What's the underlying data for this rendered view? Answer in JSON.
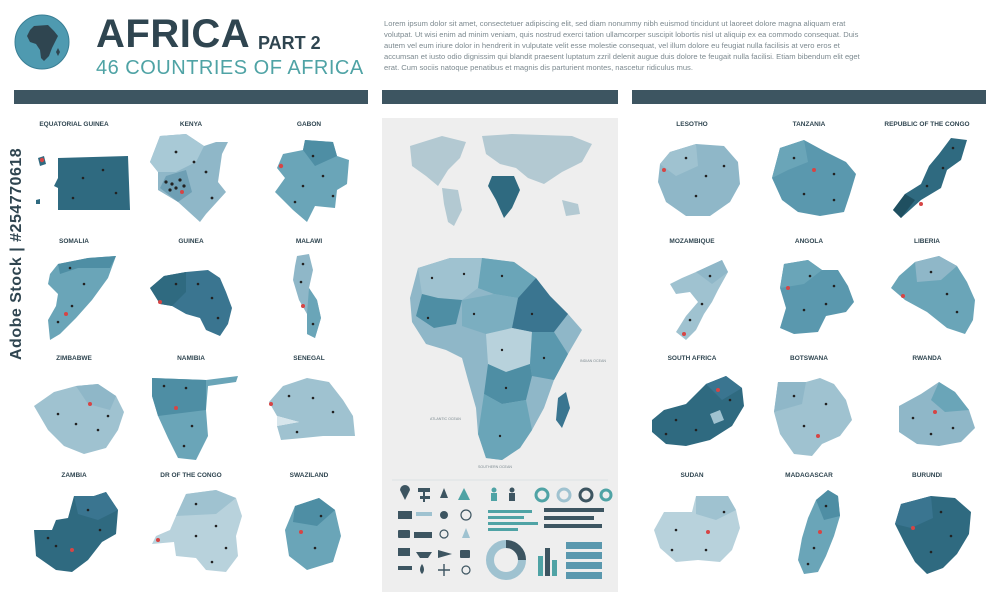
{
  "header": {
    "title": "AFRICA",
    "part": "PART 2",
    "subtitle": "46 COUNTRIES OF AFRICA",
    "lorem": "Lorem ipsum dolor sit amet, consectetuer adipiscing elit, sed diam nonummy nibh euismod tincidunt ut laoreet dolore magna aliquam erat volutpat. Ut wisi enim ad minim veniam, quis nostrud exerci tation ullamcorper suscipit lobortis nisl ut aliquip ex ea commodo consequat. Duis autem vel eum iriure dolor in hendrerit in vulputate velit esse molestie consequat, vel illum dolore eu feugiat nulla facilisis at vero eros et accumsan et iusto odio dignissim qui blandit praesent luptatum zzril delenit augue duis dolore te feugait nulla facilisi. Etiam bibendum elit eget erat. Cum sociis natoque penatibus et magnis dis parturient montes, nascetur ridiculus mus."
  },
  "watermark": "Adobe Stock | #254770618",
  "colors": {
    "dark": "#2f4550",
    "teal": "#4fa3a5",
    "map_dark": "#2f6a80",
    "map_mid": "#5a98ae",
    "map_light": "#9fc2d0",
    "bar": "#3d5561"
  },
  "left_countries": [
    {
      "name": "EQUATORIAL GUINEA"
    },
    {
      "name": "KENYA"
    },
    {
      "name": "GABON"
    },
    {
      "name": "SOMALIA"
    },
    {
      "name": "GUINEA"
    },
    {
      "name": "MALAWI"
    },
    {
      "name": "ZIMBABWE"
    },
    {
      "name": "NAMIBIA"
    },
    {
      "name": "SENEGAL"
    },
    {
      "name": "ZAMBIA"
    },
    {
      "name": "DR OF THE CONGO"
    },
    {
      "name": "SWAZILAND"
    }
  ],
  "right_countries": [
    {
      "name": "LESOTHO"
    },
    {
      "name": "TANZANIA"
    },
    {
      "name": "REPUBLIC OF THE CONGO"
    },
    {
      "name": "MOZAMBIQUE"
    },
    {
      "name": "ANGOLA"
    },
    {
      "name": "LIBERIA"
    },
    {
      "name": "SOUTH AFRICA"
    },
    {
      "name": "BOTSWANA"
    },
    {
      "name": "RWANDA"
    },
    {
      "name": "SUDAN"
    },
    {
      "name": "MADAGASCAR"
    },
    {
      "name": "BURUNDI"
    }
  ],
  "center": {
    "ocean_labels": [
      "ATLANTIC OCEAN",
      "INDIAN OCEAN",
      "SOUTHERN OCEAN"
    ]
  }
}
